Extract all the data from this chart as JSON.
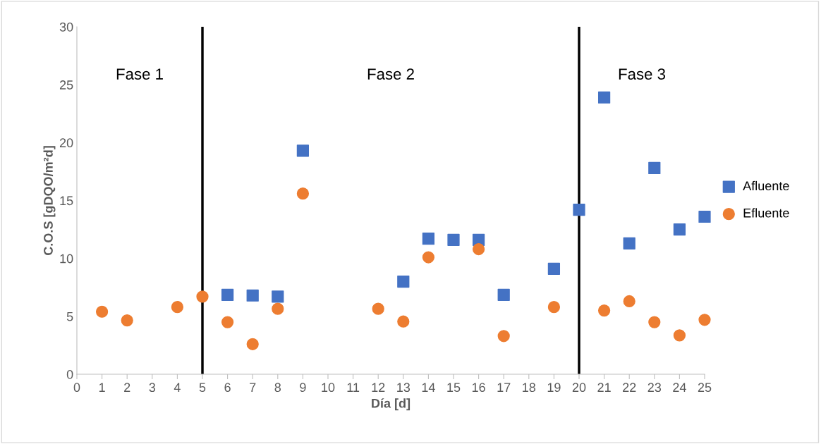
{
  "chart_data": {
    "type": "scatter",
    "xlabel": "Día [d]",
    "ylabel": "C.O.S [gDQO/m²d]",
    "xlim": [
      0,
      25
    ],
    "xticks": [
      0,
      1,
      2,
      3,
      4,
      5,
      6,
      7,
      8,
      9,
      10,
      11,
      12,
      13,
      14,
      15,
      16,
      17,
      18,
      19,
      20,
      21,
      22,
      23,
      24,
      25
    ],
    "ylim": [
      0,
      30
    ],
    "yticks": [
      0,
      5,
      10,
      15,
      20,
      25,
      30
    ],
    "grid": false,
    "legend": "right",
    "series": [
      {
        "name": "Afluente",
        "color": "#4472c4",
        "marker": "square",
        "x": [
          6,
          7,
          8,
          9,
          13,
          14,
          15,
          16,
          17,
          19,
          20,
          21,
          22,
          23,
          24,
          25
        ],
        "values": [
          6.85,
          6.8,
          6.7,
          19.3,
          8.0,
          11.7,
          11.6,
          11.6,
          6.85,
          9.1,
          14.2,
          23.9,
          11.3,
          17.8,
          12.5,
          13.6
        ]
      },
      {
        "name": "Efluente",
        "color": "#ed7d31",
        "marker": "circle",
        "x": [
          1,
          2,
          4,
          5,
          6,
          7,
          8,
          9,
          12,
          13,
          14,
          16,
          17,
          19,
          21,
          22,
          23,
          24,
          25
        ],
        "values": [
          5.4,
          4.65,
          5.8,
          6.7,
          4.5,
          2.6,
          5.65,
          15.6,
          5.65,
          4.55,
          10.1,
          10.8,
          3.3,
          5.8,
          5.5,
          6.3,
          4.5,
          3.35,
          4.7
        ]
      }
    ],
    "ref_lines": [
      {
        "axis": "x",
        "value": 5,
        "color": "#000000"
      },
      {
        "axis": "x",
        "value": 20,
        "color": "#000000"
      }
    ],
    "annotations": [
      "Fase 1",
      "Fase 2",
      "Fase 3"
    ]
  }
}
